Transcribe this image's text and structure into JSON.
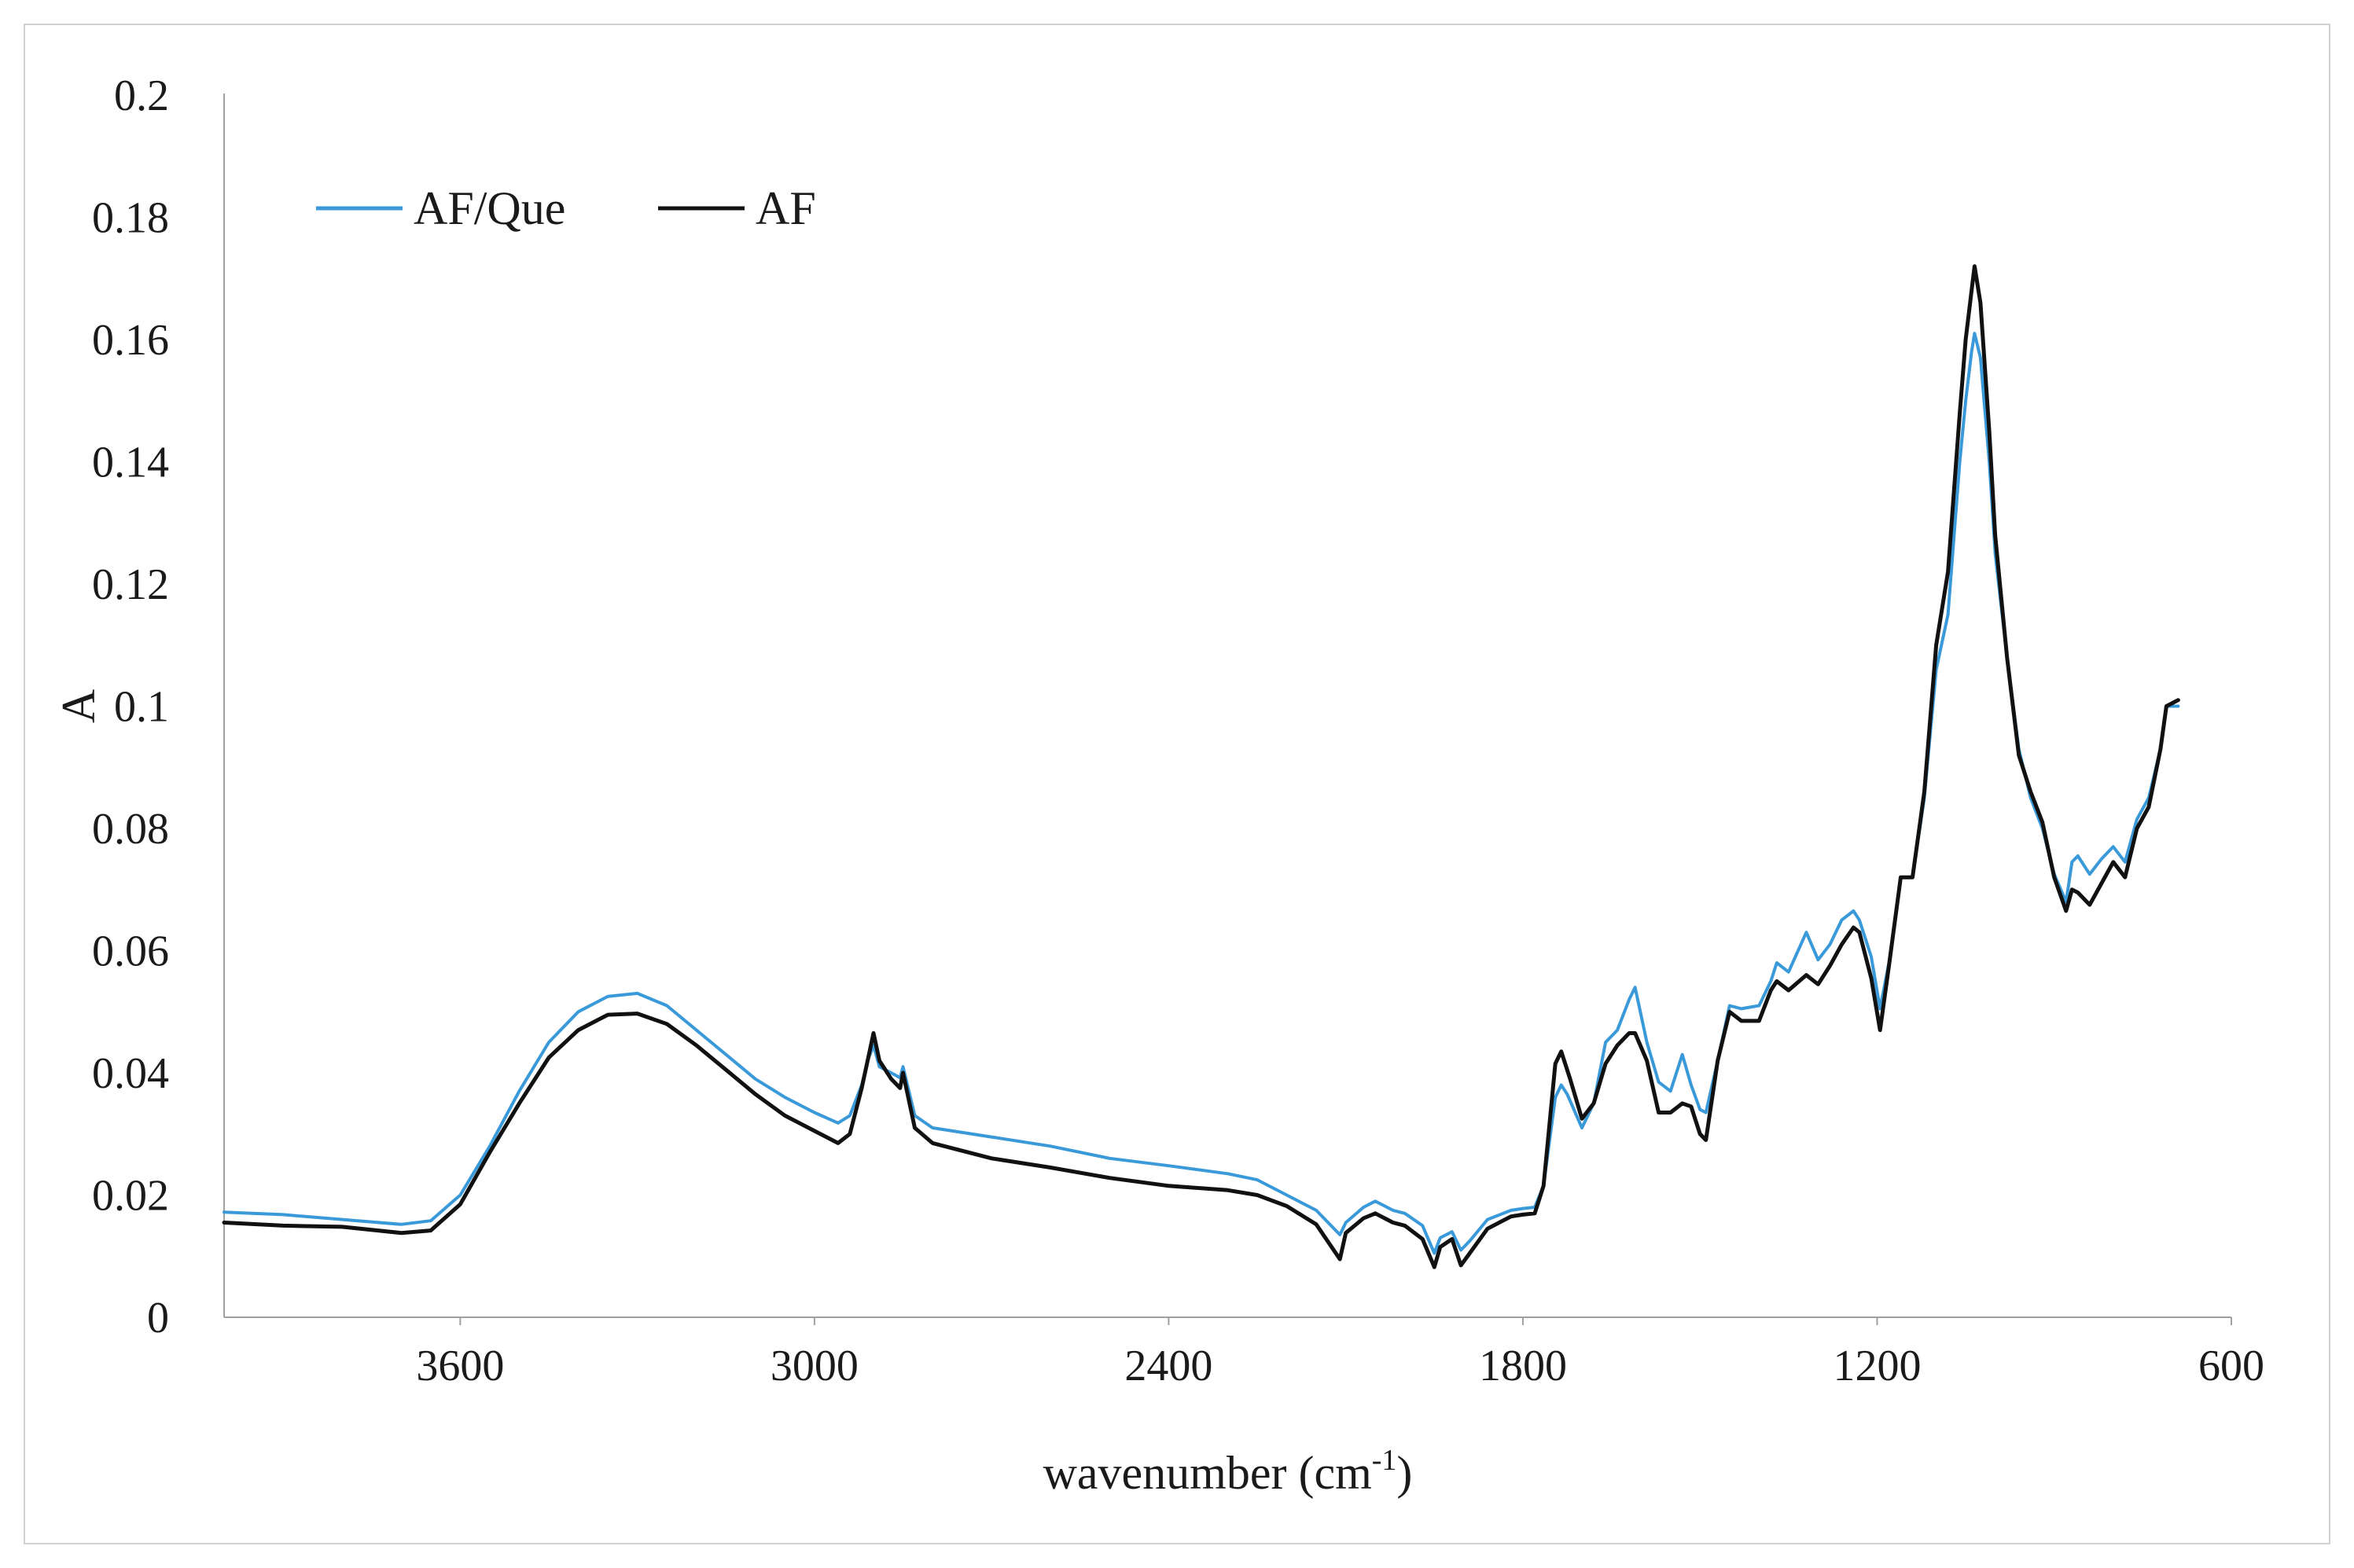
{
  "chart_data": {
    "type": "line",
    "xlabel": "wavenumber (cm",
    "xlabel_sup": "-1",
    "xlabel_close": ")",
    "ylabel": "A",
    "xlim": [
      4000,
      600
    ],
    "x_reversed": true,
    "ylim": [
      0,
      0.2
    ],
    "x_ticks": [
      3600,
      3000,
      2400,
      1800,
      1200,
      600
    ],
    "x_tick_labels": [
      "3600",
      "3000",
      "2400",
      "1800",
      "1200",
      "600"
    ],
    "y_ticks": [
      0,
      0.02,
      0.04,
      0.06,
      0.08,
      0.1,
      0.12,
      0.14,
      0.16,
      0.18,
      0.2
    ],
    "y_tick_labels": [
      "0",
      "0.02",
      "0.04",
      "0.06",
      "0.08",
      "0.1",
      "0.12",
      "0.14",
      "0.16",
      "0.18",
      "0.2"
    ],
    "grid": false,
    "legend_position": "top-left",
    "series": [
      {
        "name": "AF/Que",
        "color": "#3a9ad9",
        "points": [
          [
            4000,
            0.0172
          ],
          [
            3900,
            0.0168
          ],
          [
            3800,
            0.016
          ],
          [
            3700,
            0.0152
          ],
          [
            3650,
            0.0158
          ],
          [
            3600,
            0.02
          ],
          [
            3550,
            0.028
          ],
          [
            3500,
            0.037
          ],
          [
            3450,
            0.045
          ],
          [
            3400,
            0.05
          ],
          [
            3350,
            0.0525
          ],
          [
            3300,
            0.053
          ],
          [
            3250,
            0.051
          ],
          [
            3200,
            0.047
          ],
          [
            3150,
            0.043
          ],
          [
            3100,
            0.039
          ],
          [
            3050,
            0.036
          ],
          [
            3000,
            0.0335
          ],
          [
            2960,
            0.0318
          ],
          [
            2940,
            0.033
          ],
          [
            2920,
            0.038
          ],
          [
            2910,
            0.042
          ],
          [
            2900,
            0.0445
          ],
          [
            2890,
            0.041
          ],
          [
            2870,
            0.04
          ],
          [
            2855,
            0.0392
          ],
          [
            2850,
            0.041
          ],
          [
            2830,
            0.033
          ],
          [
            2800,
            0.031
          ],
          [
            2700,
            0.0295
          ],
          [
            2600,
            0.028
          ],
          [
            2500,
            0.026
          ],
          [
            2400,
            0.0248
          ],
          [
            2300,
            0.0235
          ],
          [
            2250,
            0.0225
          ],
          [
            2200,
            0.02
          ],
          [
            2150,
            0.0175
          ],
          [
            2110,
            0.0135
          ],
          [
            2100,
            0.0155
          ],
          [
            2070,
            0.018
          ],
          [
            2050,
            0.019
          ],
          [
            2020,
            0.0175
          ],
          [
            2000,
            0.017
          ],
          [
            1970,
            0.015
          ],
          [
            1950,
            0.0105
          ],
          [
            1940,
            0.013
          ],
          [
            1920,
            0.014
          ],
          [
            1905,
            0.011
          ],
          [
            1890,
            0.0125
          ],
          [
            1860,
            0.016
          ],
          [
            1820,
            0.0175
          ],
          [
            1800,
            0.0178
          ],
          [
            1780,
            0.018
          ],
          [
            1765,
            0.0215
          ],
          [
            1745,
            0.036
          ],
          [
            1735,
            0.038
          ],
          [
            1725,
            0.0365
          ],
          [
            1700,
            0.031
          ],
          [
            1680,
            0.035
          ],
          [
            1660,
            0.045
          ],
          [
            1640,
            0.047
          ],
          [
            1620,
            0.052
          ],
          [
            1610,
            0.054
          ],
          [
            1590,
            0.045
          ],
          [
            1570,
            0.0385
          ],
          [
            1550,
            0.037
          ],
          [
            1530,
            0.043
          ],
          [
            1515,
            0.038
          ],
          [
            1500,
            0.034
          ],
          [
            1490,
            0.0335
          ],
          [
            1470,
            0.042
          ],
          [
            1450,
            0.051
          ],
          [
            1430,
            0.0505
          ],
          [
            1400,
            0.051
          ],
          [
            1380,
            0.055
          ],
          [
            1370,
            0.058
          ],
          [
            1350,
            0.0565
          ],
          [
            1320,
            0.063
          ],
          [
            1300,
            0.0585
          ],
          [
            1280,
            0.061
          ],
          [
            1260,
            0.065
          ],
          [
            1240,
            0.0665
          ],
          [
            1230,
            0.065
          ],
          [
            1210,
            0.059
          ],
          [
            1195,
            0.0505
          ],
          [
            1180,
            0.058
          ],
          [
            1160,
            0.072
          ],
          [
            1140,
            0.072
          ],
          [
            1120,
            0.085
          ],
          [
            1100,
            0.106
          ],
          [
            1080,
            0.115
          ],
          [
            1060,
            0.14
          ],
          [
            1050,
            0.15
          ],
          [
            1040,
            0.158
          ],
          [
            1035,
            0.161
          ],
          [
            1025,
            0.157
          ],
          [
            1010,
            0.14
          ],
          [
            1000,
            0.125
          ],
          [
            980,
            0.108
          ],
          [
            960,
            0.093
          ],
          [
            940,
            0.085
          ],
          [
            920,
            0.08
          ],
          [
            900,
            0.0725
          ],
          [
            880,
            0.068
          ],
          [
            870,
            0.0745
          ],
          [
            860,
            0.0755
          ],
          [
            840,
            0.0725
          ],
          [
            820,
            0.075
          ],
          [
            800,
            0.077
          ],
          [
            780,
            0.0745
          ],
          [
            760,
            0.0815
          ],
          [
            740,
            0.085
          ],
          [
            720,
            0.093
          ],
          [
            710,
            0.1
          ],
          [
            690,
            0.1
          ]
        ]
      },
      {
        "name": "AF",
        "color": "#111111",
        "points": [
          [
            4000,
            0.0155
          ],
          [
            3900,
            0.015
          ],
          [
            3800,
            0.0148
          ],
          [
            3700,
            0.0138
          ],
          [
            3650,
            0.0142
          ],
          [
            3600,
            0.0185
          ],
          [
            3550,
            0.027
          ],
          [
            3500,
            0.035
          ],
          [
            3450,
            0.0425
          ],
          [
            3400,
            0.047
          ],
          [
            3350,
            0.0495
          ],
          [
            3300,
            0.0497
          ],
          [
            3250,
            0.048
          ],
          [
            3200,
            0.0445
          ],
          [
            3150,
            0.0405
          ],
          [
            3100,
            0.0365
          ],
          [
            3050,
            0.033
          ],
          [
            3000,
            0.0305
          ],
          [
            2960,
            0.0285
          ],
          [
            2940,
            0.03
          ],
          [
            2920,
            0.0375
          ],
          [
            2910,
            0.042
          ],
          [
            2900,
            0.0465
          ],
          [
            2890,
            0.042
          ],
          [
            2870,
            0.039
          ],
          [
            2855,
            0.0375
          ],
          [
            2850,
            0.04
          ],
          [
            2830,
            0.031
          ],
          [
            2800,
            0.0285
          ],
          [
            2700,
            0.026
          ],
          [
            2600,
            0.0245
          ],
          [
            2500,
            0.0228
          ],
          [
            2400,
            0.0215
          ],
          [
            2300,
            0.0208
          ],
          [
            2250,
            0.02
          ],
          [
            2200,
            0.0182
          ],
          [
            2150,
            0.0152
          ],
          [
            2110,
            0.0095
          ],
          [
            2100,
            0.0138
          ],
          [
            2070,
            0.0162
          ],
          [
            2050,
            0.017
          ],
          [
            2020,
            0.0155
          ],
          [
            2000,
            0.015
          ],
          [
            1970,
            0.0128
          ],
          [
            1950,
            0.0082
          ],
          [
            1940,
            0.0115
          ],
          [
            1920,
            0.0128
          ],
          [
            1905,
            0.0085
          ],
          [
            1890,
            0.0105
          ],
          [
            1860,
            0.0145
          ],
          [
            1820,
            0.0165
          ],
          [
            1800,
            0.0168
          ],
          [
            1780,
            0.017
          ],
          [
            1765,
            0.0215
          ],
          [
            1745,
            0.0415
          ],
          [
            1735,
            0.0435
          ],
          [
            1720,
            0.039
          ],
          [
            1700,
            0.0325
          ],
          [
            1680,
            0.035
          ],
          [
            1660,
            0.0415
          ],
          [
            1640,
            0.0445
          ],
          [
            1620,
            0.0465
          ],
          [
            1610,
            0.0465
          ],
          [
            1590,
            0.042
          ],
          [
            1570,
            0.0335
          ],
          [
            1550,
            0.0335
          ],
          [
            1530,
            0.035
          ],
          [
            1515,
            0.0345
          ],
          [
            1500,
            0.03
          ],
          [
            1490,
            0.029
          ],
          [
            1470,
            0.042
          ],
          [
            1450,
            0.05
          ],
          [
            1430,
            0.0485
          ],
          [
            1400,
            0.0485
          ],
          [
            1380,
            0.0535
          ],
          [
            1370,
            0.055
          ],
          [
            1350,
            0.0535
          ],
          [
            1320,
            0.056
          ],
          [
            1300,
            0.0545
          ],
          [
            1280,
            0.0575
          ],
          [
            1260,
            0.061
          ],
          [
            1240,
            0.0638
          ],
          [
            1230,
            0.063
          ],
          [
            1210,
            0.0555
          ],
          [
            1195,
            0.047
          ],
          [
            1180,
            0.0575
          ],
          [
            1160,
            0.072
          ],
          [
            1140,
            0.072
          ],
          [
            1120,
            0.086
          ],
          [
            1100,
            0.11
          ],
          [
            1080,
            0.122
          ],
          [
            1060,
            0.148
          ],
          [
            1050,
            0.16
          ],
          [
            1040,
            0.168
          ],
          [
            1035,
            0.172
          ],
          [
            1025,
            0.166
          ],
          [
            1010,
            0.145
          ],
          [
            1000,
            0.128
          ],
          [
            980,
            0.108
          ],
          [
            960,
            0.092
          ],
          [
            940,
            0.086
          ],
          [
            920,
            0.081
          ],
          [
            900,
            0.072
          ],
          [
            880,
            0.0665
          ],
          [
            870,
            0.07
          ],
          [
            860,
            0.0695
          ],
          [
            840,
            0.0675
          ],
          [
            820,
            0.071
          ],
          [
            800,
            0.0745
          ],
          [
            780,
            0.072
          ],
          [
            760,
            0.08
          ],
          [
            740,
            0.0835
          ],
          [
            720,
            0.093
          ],
          [
            710,
            0.1
          ],
          [
            690,
            0.101
          ]
        ]
      }
    ]
  }
}
